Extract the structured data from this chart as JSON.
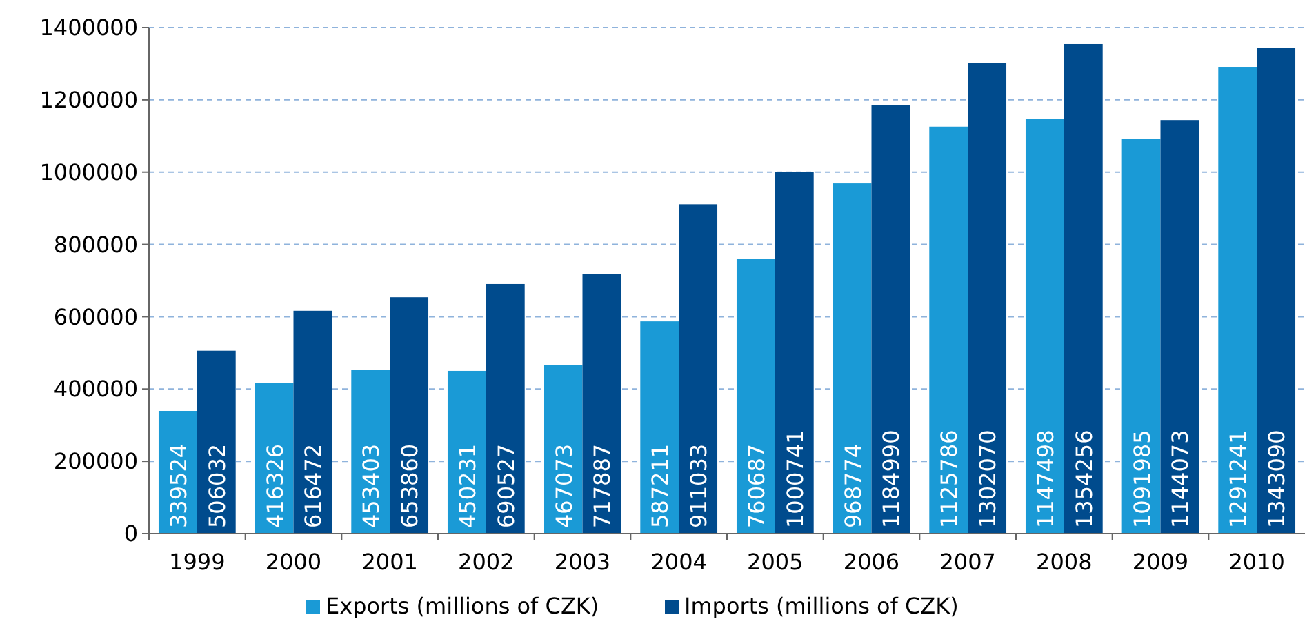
{
  "chart_data": {
    "type": "bar",
    "categories": [
      "1999",
      "2000",
      "2001",
      "2002",
      "2003",
      "2004",
      "2005",
      "2006",
      "2007",
      "2008",
      "2009",
      "2010"
    ],
    "series": [
      {
        "name": "Exports (millions of CZK)",
        "color": "#1a9ad6",
        "values": [
          339524,
          416326,
          453403,
          450231,
          467073,
          587211,
          760687,
          968774,
          1125786,
          1147498,
          1091985,
          1291241
        ]
      },
      {
        "name": "Imports (millions of CZK)",
        "color": "#004b8d",
        "values": [
          506032,
          616472,
          653860,
          690527,
          717887,
          911033,
          1000741,
          1184990,
          1302070,
          1354256,
          1144073,
          1343090
        ]
      }
    ],
    "ylim": [
      0,
      1400000
    ],
    "yticks": [
      0,
      200000,
      400000,
      600000,
      800000,
      1000000,
      1200000,
      1400000
    ],
    "grid": "y",
    "data_labels": true,
    "legend": "bottom"
  }
}
